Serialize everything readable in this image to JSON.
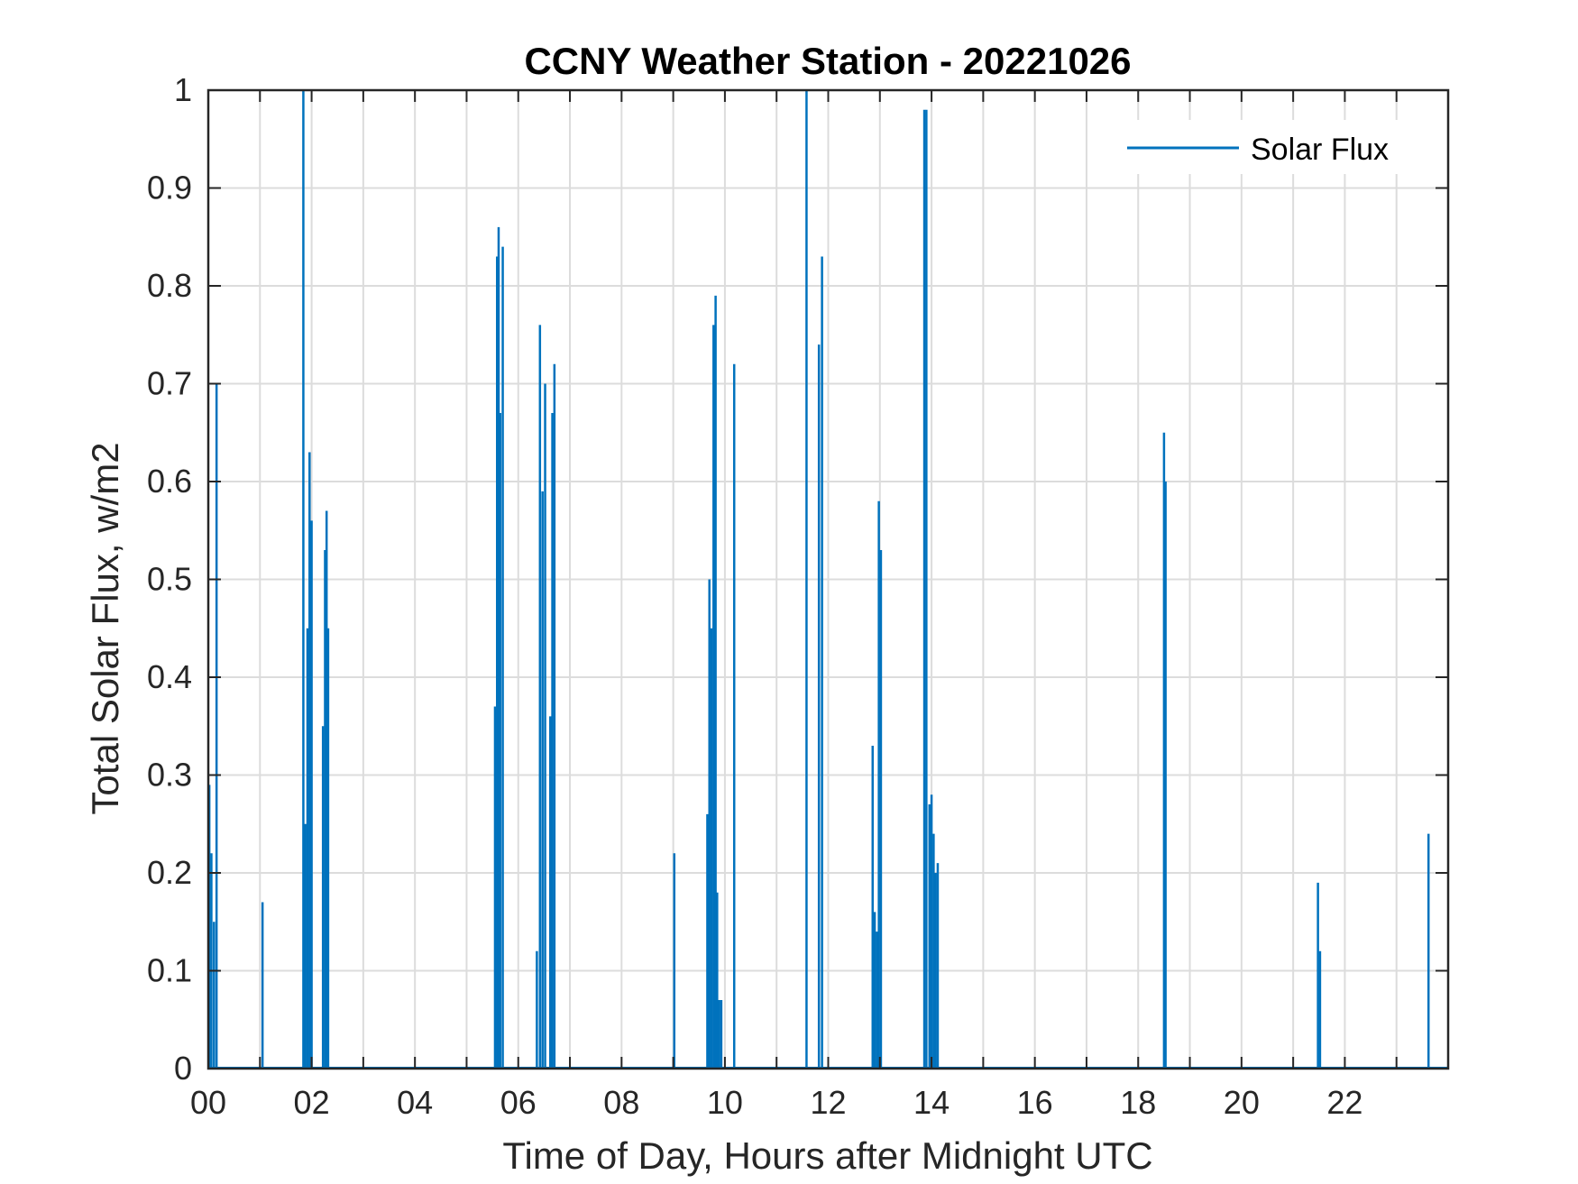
{
  "chart_data": {
    "type": "line",
    "title": "CCNY Weather Station - 20221026",
    "xlabel": "Time of Day, Hours after Midnight UTC",
    "ylabel": "Total Solar Flux, w/m2",
    "xlim": [
      0,
      24
    ],
    "ylim": [
      0,
      1
    ],
    "xticks": [
      0,
      2,
      4,
      6,
      8,
      10,
      12,
      14,
      16,
      18,
      20,
      22
    ],
    "xtick_labels": [
      "00",
      "02",
      "04",
      "06",
      "08",
      "10",
      "12",
      "14",
      "16",
      "18",
      "20",
      "22"
    ],
    "yticks": [
      0,
      0.1,
      0.2,
      0.3,
      0.4,
      0.5,
      0.6,
      0.7,
      0.8,
      0.9,
      1
    ],
    "ytick_labels": [
      "0",
      "0.1",
      "0.2",
      "0.3",
      "0.4",
      "0.5",
      "0.6",
      "0.7",
      "0.8",
      "0.9",
      "1"
    ],
    "grid": true,
    "legend_position": "top-right",
    "colors": {
      "series": "#0072BD",
      "grid": "#dcdcdc",
      "axes": "#262626"
    },
    "series": [
      {
        "name": "Solar Flux",
        "spikes": [
          [
            0.02,
            0.29
          ],
          [
            0.06,
            0.22
          ],
          [
            0.11,
            0.15
          ],
          [
            0.16,
            0.7
          ],
          [
            1.05,
            0.17
          ],
          [
            1.84,
            1.0
          ],
          [
            1.88,
            0.25
          ],
          [
            1.92,
            0.45
          ],
          [
            1.96,
            0.63
          ],
          [
            2.0,
            0.56
          ],
          [
            2.22,
            0.35
          ],
          [
            2.26,
            0.53
          ],
          [
            2.29,
            0.57
          ],
          [
            2.32,
            0.45
          ],
          [
            5.55,
            0.37
          ],
          [
            5.59,
            0.83
          ],
          [
            5.62,
            0.86
          ],
          [
            5.65,
            0.67
          ],
          [
            5.7,
            0.84
          ],
          [
            6.36,
            0.12
          ],
          [
            6.42,
            0.76
          ],
          [
            6.47,
            0.59
          ],
          [
            6.52,
            0.7
          ],
          [
            6.62,
            0.36
          ],
          [
            6.66,
            0.67
          ],
          [
            6.7,
            0.72
          ],
          [
            9.02,
            0.22
          ],
          [
            9.66,
            0.26
          ],
          [
            9.7,
            0.5
          ],
          [
            9.74,
            0.45
          ],
          [
            9.78,
            0.76
          ],
          [
            9.82,
            0.79
          ],
          [
            9.85,
            0.18
          ],
          [
            9.89,
            0.07
          ],
          [
            9.93,
            0.07
          ],
          [
            10.18,
            0.72
          ],
          [
            11.58,
            1.0
          ],
          [
            11.82,
            0.74
          ],
          [
            11.88,
            0.83
          ],
          [
            12.86,
            0.33
          ],
          [
            12.9,
            0.16
          ],
          [
            12.94,
            0.14
          ],
          [
            12.98,
            0.58
          ],
          [
            13.02,
            0.53
          ],
          [
            13.86,
            0.98
          ],
          [
            13.9,
            0.98
          ],
          [
            13.96,
            0.27
          ],
          [
            14.0,
            0.28
          ],
          [
            14.04,
            0.24
          ],
          [
            14.08,
            0.2
          ],
          [
            14.12,
            0.21
          ],
          [
            18.5,
            0.65
          ],
          [
            18.53,
            0.6
          ],
          [
            21.48,
            0.19
          ],
          [
            21.52,
            0.12
          ],
          [
            23.62,
            0.24
          ]
        ]
      }
    ]
  }
}
